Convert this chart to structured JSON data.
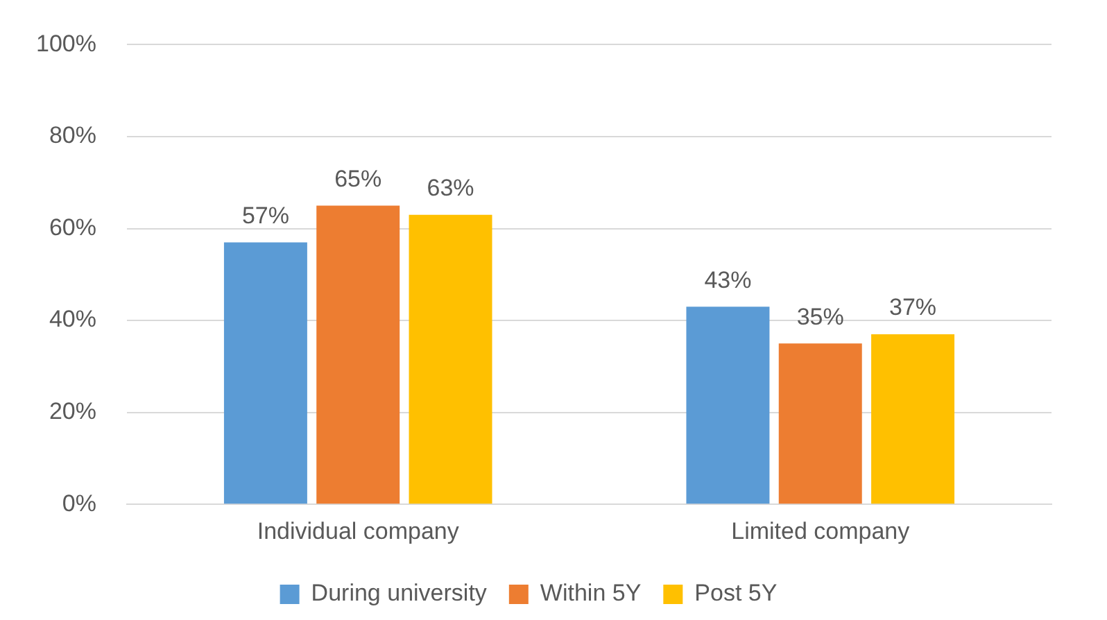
{
  "chart_data": {
    "type": "bar",
    "categories": [
      "Individual company",
      "Limited company"
    ],
    "series": [
      {
        "name": "During university",
        "color": "#5b9bd5",
        "values": [
          57,
          43
        ],
        "value_labels": [
          "57%",
          "43%"
        ]
      },
      {
        "name": "Within 5Y",
        "color": "#ed7d31",
        "values": [
          65,
          35
        ],
        "value_labels": [
          "65%",
          "35%"
        ]
      },
      {
        "name": "Post 5Y",
        "color": "#ffc000",
        "values": [
          63,
          37
        ],
        "value_labels": [
          "63%",
          "37%"
        ]
      }
    ],
    "ylim": [
      0,
      100
    ],
    "yticks": [
      {
        "value": 0,
        "label": "0%"
      },
      {
        "value": 20,
        "label": "20%"
      },
      {
        "value": 40,
        "label": "40%"
      },
      {
        "value": 60,
        "label": "60%"
      },
      {
        "value": 80,
        "label": "80%"
      },
      {
        "value": 100,
        "label": "100%"
      }
    ],
    "grid": "y",
    "legend": "bottom"
  }
}
